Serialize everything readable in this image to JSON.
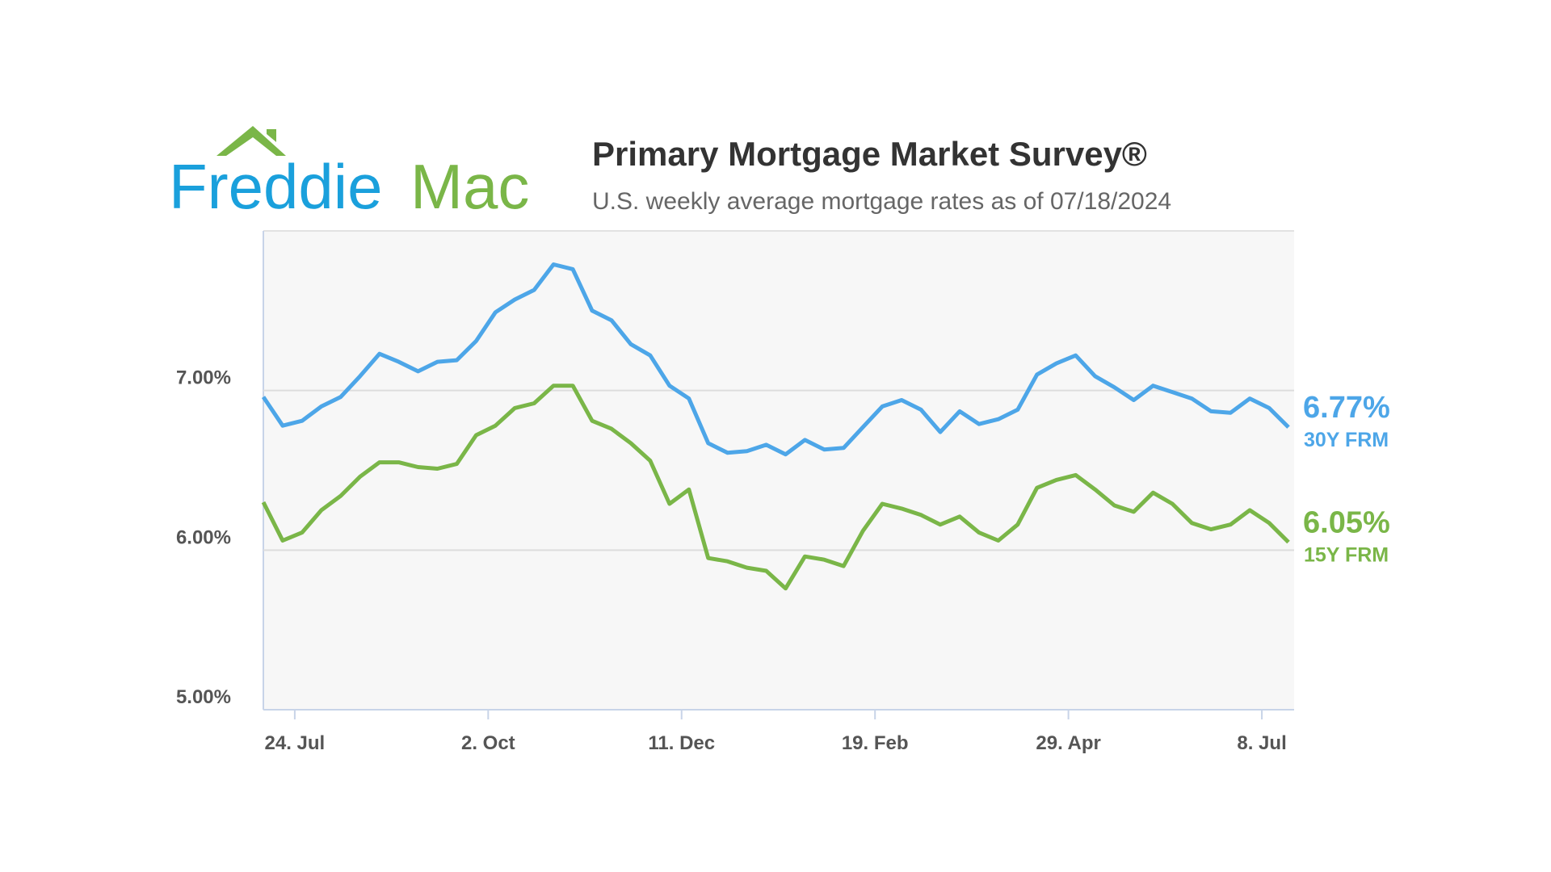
{
  "logo": [
    "Freddie",
    "Mac"
  ],
  "chart_data": {
    "type": "line",
    "title": "Primary Mortgage Market Survey®",
    "subtitle": "U.S. weekly average mortgage rates as of 07/18/2024",
    "categories": [
      null,
      null,
      "24. Jul",
      null,
      null,
      null,
      null,
      null,
      null,
      null,
      null,
      null,
      "2. Oct",
      null,
      null,
      null,
      null,
      null,
      null,
      null,
      null,
      null,
      "11. Dec",
      null,
      null,
      null,
      null,
      null,
      null,
      null,
      null,
      null,
      "19. Feb",
      null,
      null,
      null,
      null,
      null,
      null,
      null,
      null,
      null,
      "29. Apr",
      null,
      null,
      null,
      null,
      null,
      null,
      null,
      null,
      null,
      "8. Jul",
      null
    ],
    "series": [
      {
        "name": "30Y FRM",
        "color": "#4da6e8",
        "values": [
          6.96,
          6.78,
          6.81,
          6.9,
          6.96,
          7.09,
          7.23,
          7.18,
          7.12,
          7.18,
          7.19,
          7.31,
          7.49,
          7.57,
          7.63,
          7.79,
          7.76,
          7.5,
          7.44,
          7.29,
          7.22,
          7.03,
          6.95,
          6.67,
          6.61,
          6.62,
          6.66,
          6.6,
          6.69,
          6.63,
          6.64,
          6.77,
          6.9,
          6.94,
          6.88,
          6.74,
          6.87,
          6.79,
          6.82,
          6.88,
          7.1,
          7.17,
          7.22,
          7.09,
          7.02,
          6.94,
          7.03,
          6.99,
          6.95,
          6.87,
          6.86,
          6.95,
          6.89,
          6.77
        ],
        "value_labels": [
          null,
          null,
          null,
          null,
          null,
          null,
          null,
          null,
          null,
          null,
          null,
          null,
          null,
          null,
          null,
          null,
          null,
          null,
          null,
          null,
          null,
          null,
          null,
          null,
          null,
          null,
          null,
          null,
          null,
          null,
          null,
          null,
          null,
          null,
          null,
          null,
          null,
          null,
          null,
          null,
          null,
          null,
          null,
          null,
          null,
          null,
          null,
          null,
          null,
          null,
          null,
          null,
          null,
          "6.77%"
        ]
      },
      {
        "name": "15Y FRM",
        "color": "#7ab648",
        "values": [
          6.3,
          6.06,
          6.11,
          6.25,
          6.34,
          6.46,
          6.55,
          6.55,
          6.52,
          6.51,
          6.54,
          6.72,
          6.78,
          6.89,
          6.92,
          7.03,
          7.03,
          6.81,
          6.76,
          6.67,
          6.56,
          6.29,
          6.38,
          5.95,
          5.93,
          5.89,
          5.87,
          5.76,
          5.96,
          5.94,
          5.9,
          6.12,
          6.29,
          6.26,
          6.22,
          6.16,
          6.21,
          6.11,
          6.06,
          6.16,
          6.39,
          6.44,
          6.47,
          6.38,
          6.28,
          6.24,
          6.36,
          6.29,
          6.17,
          6.13,
          6.16,
          6.25,
          6.17,
          6.05
        ],
        "value_labels": [
          null,
          null,
          null,
          null,
          null,
          null,
          null,
          null,
          null,
          null,
          null,
          null,
          null,
          null,
          null,
          null,
          null,
          null,
          null,
          null,
          null,
          null,
          null,
          null,
          null,
          null,
          null,
          null,
          null,
          null,
          null,
          null,
          null,
          null,
          null,
          null,
          null,
          null,
          null,
          null,
          null,
          null,
          null,
          null,
          null,
          null,
          null,
          null,
          null,
          null,
          null,
          null,
          null,
          "6.05%"
        ]
      }
    ],
    "ylim": [
      5,
      8
    ],
    "yticks": [
      {
        "value": 5,
        "label": "5.00%"
      },
      {
        "value": 6,
        "label": "6.00%"
      },
      {
        "value": 7,
        "label": "7.00%"
      }
    ],
    "grid": true
  }
}
